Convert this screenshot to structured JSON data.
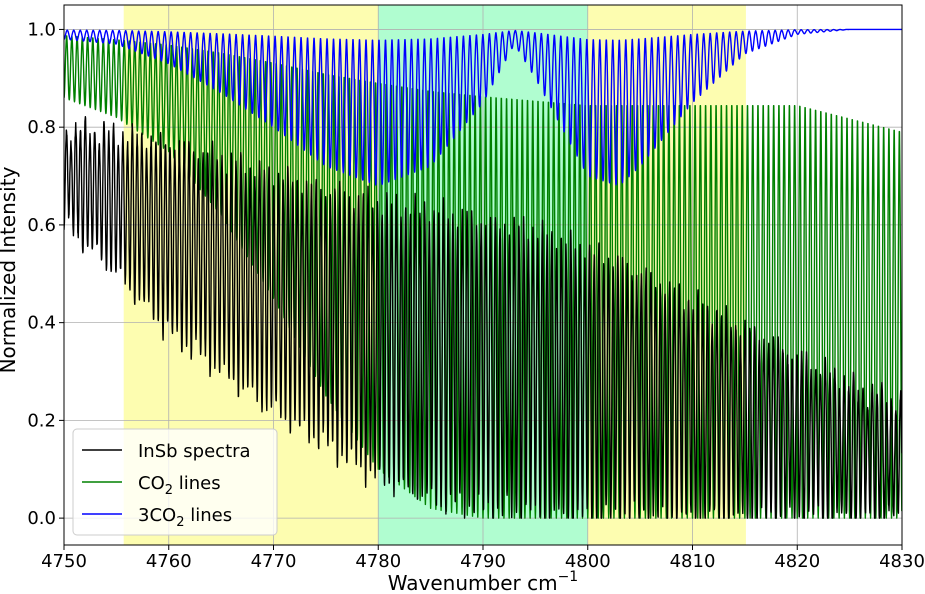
{
  "chart_data": {
    "type": "line",
    "xlabel": "Wavenumber cm",
    "xlabel_sup": "−1",
    "ylabel": "Normalized Intensity",
    "xlim": [
      4750,
      4830
    ],
    "ylim": [
      -0.055,
      1.05
    ],
    "x_ticks": [
      4750,
      4760,
      4770,
      4780,
      4790,
      4800,
      4810,
      4820,
      4830
    ],
    "x_tick_labels": [
      "4750",
      "4760",
      "4770",
      "4780",
      "4790",
      "4800",
      "4810",
      "4820",
      "4830"
    ],
    "y_ticks": [
      0.0,
      0.2,
      0.4,
      0.6,
      0.8,
      1.0
    ],
    "y_tick_labels": [
      "0.0",
      "0.2",
      "0.4",
      "0.6",
      "0.8",
      "1.0"
    ],
    "grid": true,
    "legend_position": "lower-left",
    "shaded_regions": [
      {
        "x0": 4755.7,
        "x1": 4780,
        "color": "#fdfdb0"
      },
      {
        "x0": 4780,
        "x1": 4800,
        "color": "#b0fdd0"
      },
      {
        "x0": 4800,
        "x1": 4815.1,
        "color": "#fdfdb0"
      }
    ],
    "series": [
      {
        "name": "InSb spectra",
        "name_main": "InSb spectra",
        "name_sub": "",
        "name_after": "",
        "color": "#000000",
        "envelope_x": [
          4750,
          4752,
          4755,
          4760,
          4765,
          4770,
          4775,
          4780,
          4785,
          4790,
          4795,
          4800,
          4805,
          4810,
          4815,
          4820,
          4825,
          4830
        ],
        "envelope_y": [
          0.8,
          0.81,
          0.8,
          0.79,
          0.76,
          0.73,
          0.7,
          0.68,
          0.66,
          0.64,
          0.62,
          0.58,
          0.53,
          0.47,
          0.41,
          0.35,
          0.29,
          0.25
        ],
        "min_x": [
          4750,
          4755,
          4760,
          4765,
          4770,
          4775,
          4780,
          4785,
          4790,
          4795,
          4800,
          4805,
          4810,
          4815,
          4820,
          4825,
          4830
        ],
        "min_y": [
          0.6,
          0.5,
          0.38,
          0.3,
          0.22,
          0.15,
          0.08,
          0.04,
          0.02,
          0.01,
          0.0,
          0.0,
          0.0,
          0.0,
          0.0,
          0.0,
          0.0
        ]
      },
      {
        "name": "CO2 lines",
        "name_main": "CO",
        "name_sub": "2",
        "name_after": " lines",
        "color": "#008000",
        "envelope_x": [
          4750,
          4760,
          4770,
          4780,
          4790,
          4800,
          4810,
          4815,
          4820,
          4825,
          4830
        ],
        "envelope_y": [
          1.0,
          0.99,
          0.98,
          0.97,
          0.95,
          0.93,
          0.93,
          0.93,
          0.93,
          0.9,
          0.87
        ],
        "min_x": [
          4750,
          4755,
          4760,
          4765,
          4770,
          4775,
          4780,
          4785,
          4790,
          4795,
          4800,
          4805,
          4810,
          4815,
          4820,
          4825,
          4830
        ],
        "min_y": [
          0.86,
          0.82,
          0.75,
          0.62,
          0.45,
          0.25,
          0.1,
          0.02,
          0.0,
          0.0,
          0.0,
          0.0,
          0.0,
          0.0,
          0.0,
          0.0,
          0.0
        ]
      },
      {
        "name": "3CO2 lines",
        "name_main": "3CO",
        "name_sub": "2",
        "name_after": " lines",
        "color": "#0000ff",
        "envelope_x": [
          4750,
          4830
        ],
        "envelope_y": [
          1.0,
          1.0
        ],
        "min_x": [
          4750,
          4755,
          4760,
          4765,
          4770,
          4775,
          4780,
          4785,
          4790,
          4793,
          4795,
          4800,
          4803,
          4805,
          4810,
          4815,
          4820,
          4825,
          4830
        ],
        "min_y": [
          0.98,
          0.97,
          0.93,
          0.87,
          0.8,
          0.72,
          0.68,
          0.72,
          0.85,
          0.97,
          0.9,
          0.7,
          0.68,
          0.72,
          0.85,
          0.95,
          0.99,
          1.0,
          1.0
        ]
      }
    ]
  }
}
